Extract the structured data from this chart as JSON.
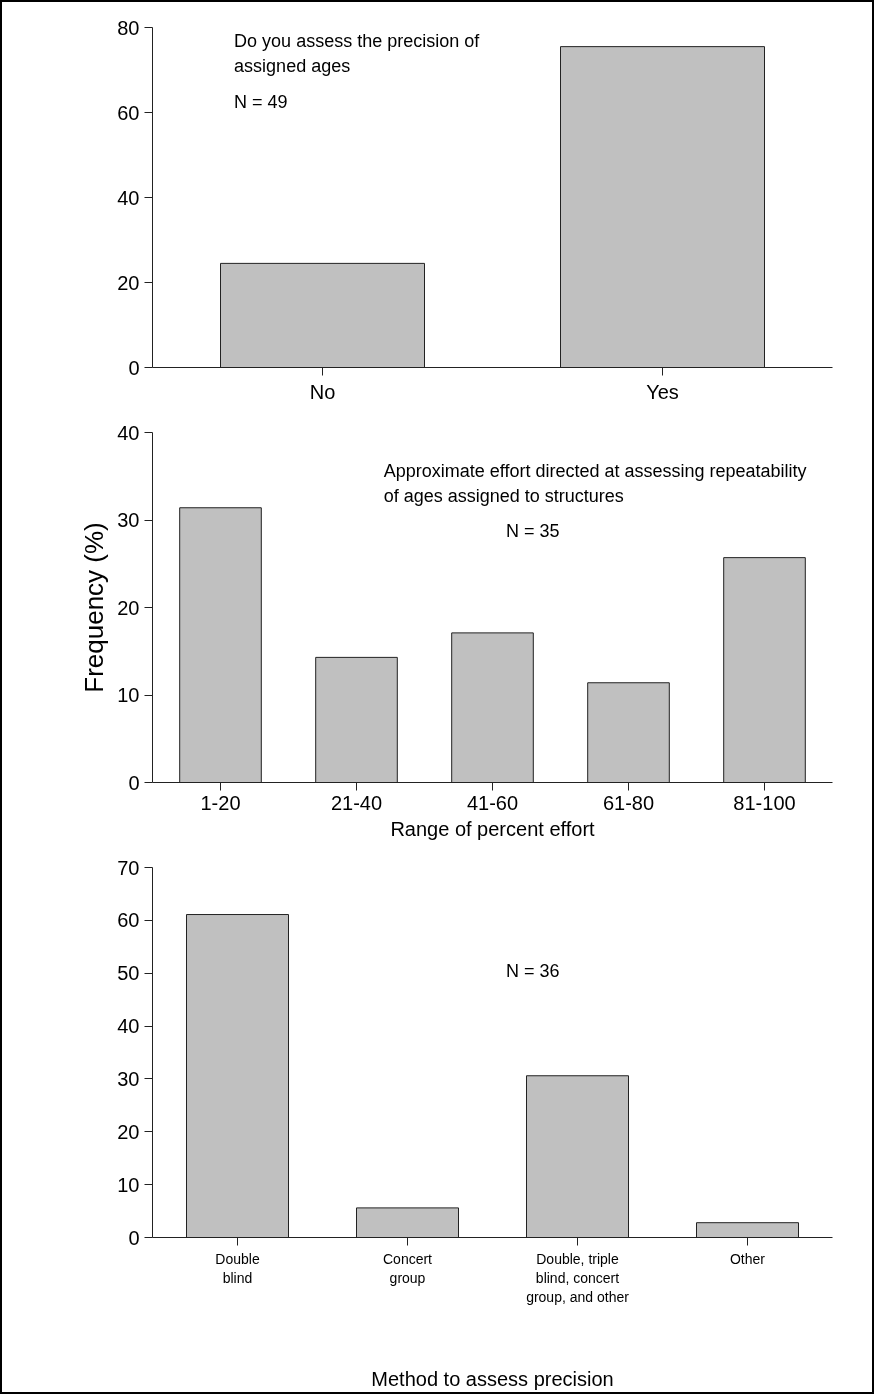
{
  "chart_data": [
    {
      "type": "bar",
      "title": "Do you assess the precision of\nassigned ages",
      "annotations": [
        "N = 49"
      ],
      "categories": [
        "No",
        "Yes"
      ],
      "values": [
        24.5,
        75.5
      ],
      "color": "#c0c0c0",
      "ylim": [
        0,
        80
      ],
      "yticks": [
        0,
        20,
        40,
        60,
        80
      ],
      "grid": false
    },
    {
      "type": "bar",
      "title": "Approximate effort directed at assessing repeatability\nof ages assigned to structures",
      "annotations": [
        "N = 35"
      ],
      "xlabel": "Range of percent effort",
      "ylabel": "Frequency (%)",
      "categories": [
        "1-20",
        "21-40",
        "41-60",
        "61-80",
        "81-100"
      ],
      "values": [
        31.4,
        14.3,
        17.1,
        11.4,
        25.7
      ],
      "color": "#c0c0c0",
      "ylim": [
        0,
        40
      ],
      "yticks": [
        0,
        10,
        20,
        30,
        40
      ],
      "grid": false
    },
    {
      "type": "bar",
      "annotations": [
        "N = 36"
      ],
      "xlabel": "Method to assess precision",
      "categories": [
        "Double\nblind",
        "Concert\ngroup",
        "Double, triple\nblind, concert\ngroup, and other",
        "Other"
      ],
      "values": [
        61.1,
        5.6,
        30.6,
        2.8
      ],
      "color": "#c0c0c0",
      "ylim": [
        0,
        70
      ],
      "yticks": [
        0,
        10,
        20,
        30,
        40,
        50,
        60,
        70
      ],
      "grid": false
    }
  ]
}
